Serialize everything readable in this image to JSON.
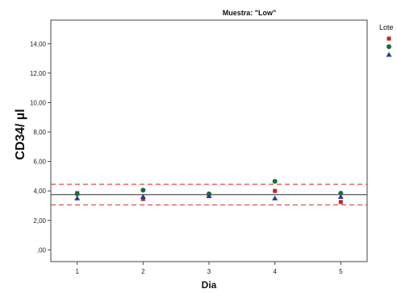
{
  "chart_data": {
    "type": "scatter",
    "title": "Muestra: \"Low\"",
    "xlabel": "Dia",
    "ylabel": "CD34/ µl",
    "x": [
      1,
      2,
      3,
      4,
      5
    ],
    "xlim": [
      0.6,
      5.4
    ],
    "ylim": [
      -0.8,
      15.6
    ],
    "yticks": [
      0,
      2,
      4,
      6,
      8,
      10,
      12,
      14
    ],
    "ytick_labels": [
      ",00",
      "2,00",
      "4,00",
      "6,00",
      "8,00",
      "10,00",
      "12,00",
      "14,00"
    ],
    "xtick_labels": [
      "1",
      "2",
      "3",
      "4",
      "5"
    ],
    "grid": false,
    "legend": {
      "title": "Lote",
      "placement": "right"
    },
    "series": [
      {
        "marker": "square",
        "color": "#c0262d",
        "values": [
          3.85,
          3.45,
          3.7,
          4.0,
          3.25
        ]
      },
      {
        "marker": "circle",
        "color": "#1e6b3a",
        "values": [
          3.8,
          4.05,
          3.8,
          4.65,
          3.85
        ]
      },
      {
        "marker": "triangle",
        "color": "#2b3a8f",
        "values": [
          3.5,
          3.6,
          3.65,
          3.5,
          3.6
        ]
      }
    ],
    "reference_lines": [
      {
        "style": "solid",
        "color": "#555555",
        "y": 3.75
      },
      {
        "style": "dashed",
        "color": "#d9444a",
        "y": 4.45
      },
      {
        "style": "dashed",
        "color": "#d9444a",
        "y": 3.05
      }
    ]
  }
}
